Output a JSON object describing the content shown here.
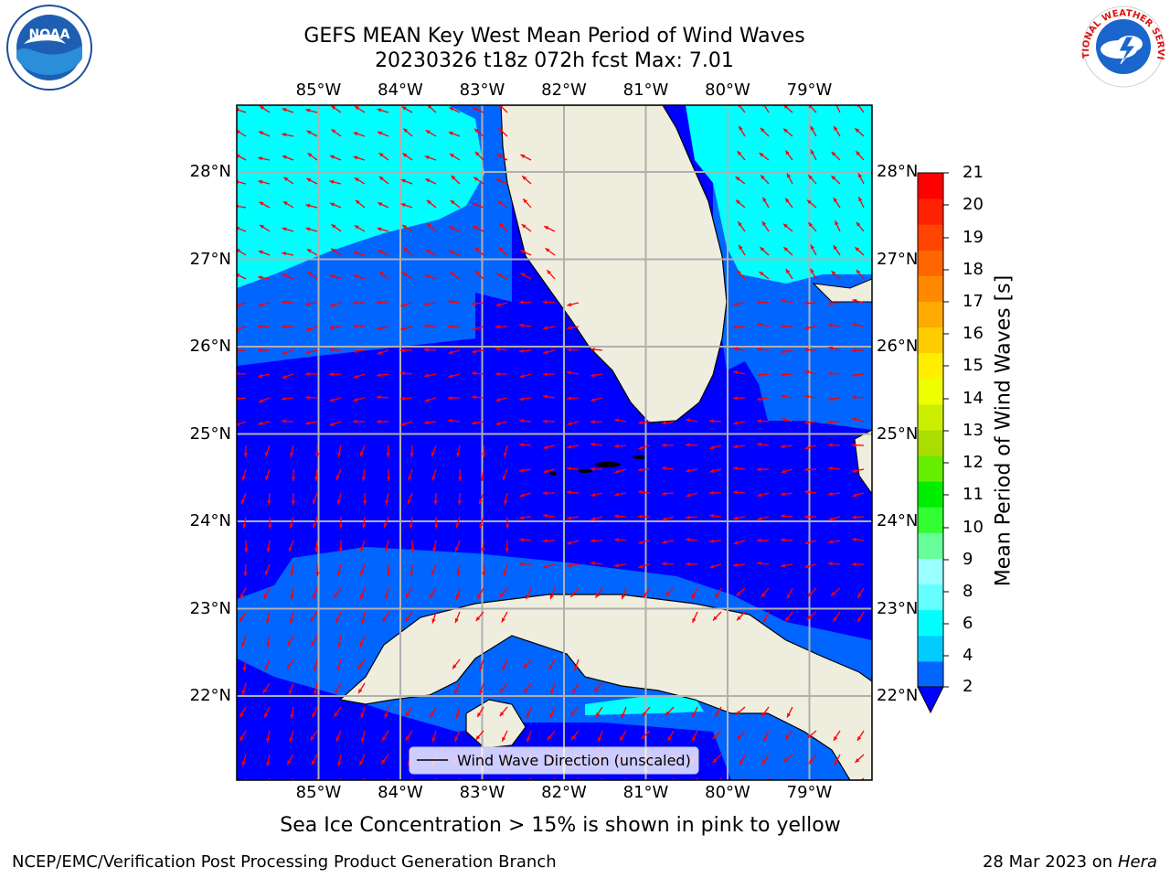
{
  "title": {
    "line1": "GEFS MEAN Key West Mean Period of Wind Waves",
    "line2": "20230326 t18z 072h fcst   Max: 7.01"
  },
  "map": {
    "lon_ticks": [
      "85°W",
      "84°W",
      "83°W",
      "82°W",
      "81°W",
      "80°W",
      "79°W"
    ],
    "lat_ticks": [
      "28°N",
      "27°N",
      "26°N",
      "25°N",
      "24°N",
      "23°N",
      "22°N"
    ],
    "legend_label": "Wind Wave Direction (unscaled)",
    "vector_color": "#ff0000",
    "land_color": "#efedde"
  },
  "colorbar": {
    "label": "Mean Period of Wind Waves [s]",
    "ticks": [
      "2",
      "4",
      "6",
      "8",
      "9",
      "10",
      "11",
      "12",
      "13",
      "14",
      "15",
      "16",
      "17",
      "18",
      "19",
      "20",
      "21"
    ],
    "colors": [
      "#0066ff",
      "#00ccff",
      "#00ffff",
      "#66ffff",
      "#99ffff",
      "#66ff99",
      "#33ff33",
      "#00ee00",
      "#66ee00",
      "#aadd00",
      "#ccee00",
      "#eeff00",
      "#ffee00",
      "#ffcc00",
      "#ffaa00",
      "#ff8800",
      "#ff6600",
      "#ff4400",
      "#ff2200",
      "#ff0000"
    ],
    "under_color": "#0000ff"
  },
  "note": "Sea Ice Concentration > 15% is shown in pink to yellow",
  "footer": {
    "credit": "NCEP/EMC/Verification Post Processing Product Generation Branch",
    "date": "28 Mar 2023 on",
    "machine": "Hera"
  },
  "logos": {
    "noaa_text": "NOAA",
    "nws_text": "NATIONAL WEATHER SERVICE"
  }
}
